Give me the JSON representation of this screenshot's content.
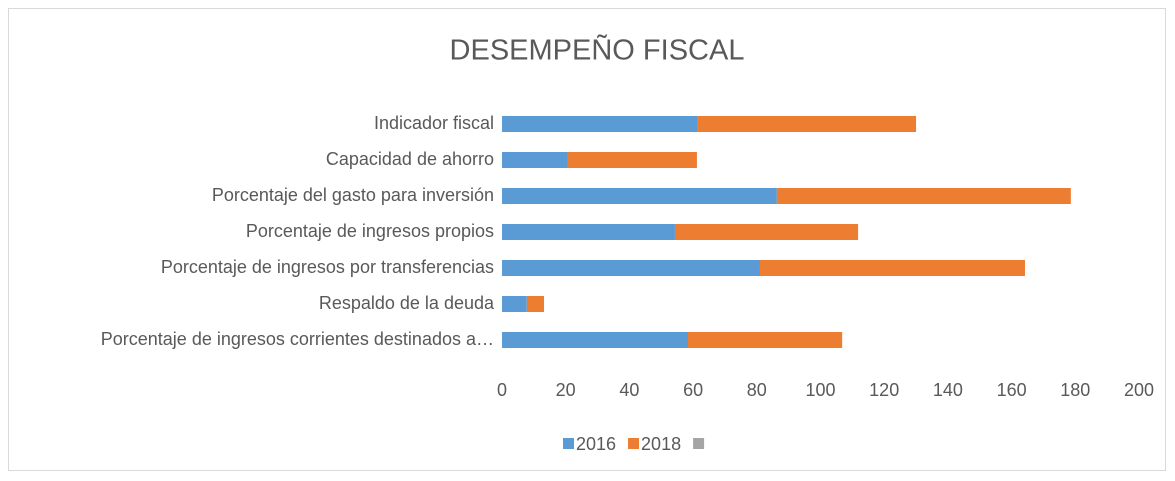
{
  "chart_data": {
    "type": "stacked-bar",
    "orientation": "horizontal",
    "title": "DESEMPEÑO FISCAL",
    "categories": [
      "Indicador fiscal",
      "Capacidad de ahorro",
      "Porcentaje del gasto para inversión",
      "Porcentaje de ingresos propios",
      "Porcentaje de ingresos por transferencias",
      "Respaldo de la deuda",
      "Porcentaje de ingresos corrientes destinados a…"
    ],
    "series": [
      {
        "name": "2016",
        "color": "#5b9bd5",
        "values": [
          61.5,
          20.7,
          86.3,
          54.3,
          81,
          7.8,
          58.4
        ]
      },
      {
        "name": "2018",
        "color": "#ed7d31",
        "values": [
          68.5,
          40.5,
          92.3,
          57.5,
          83.2,
          5.4,
          48.4
        ]
      },
      {
        "color": "#a5a5a5",
        "values": [
          null,
          null,
          null,
          null,
          null,
          null,
          null
        ]
      }
    ],
    "xlim": [
      0,
      200
    ],
    "xticks": [
      0,
      20,
      40,
      60,
      80,
      100,
      120,
      140,
      160,
      180,
      200
    ],
    "grid": false,
    "legend": "bottom"
  }
}
